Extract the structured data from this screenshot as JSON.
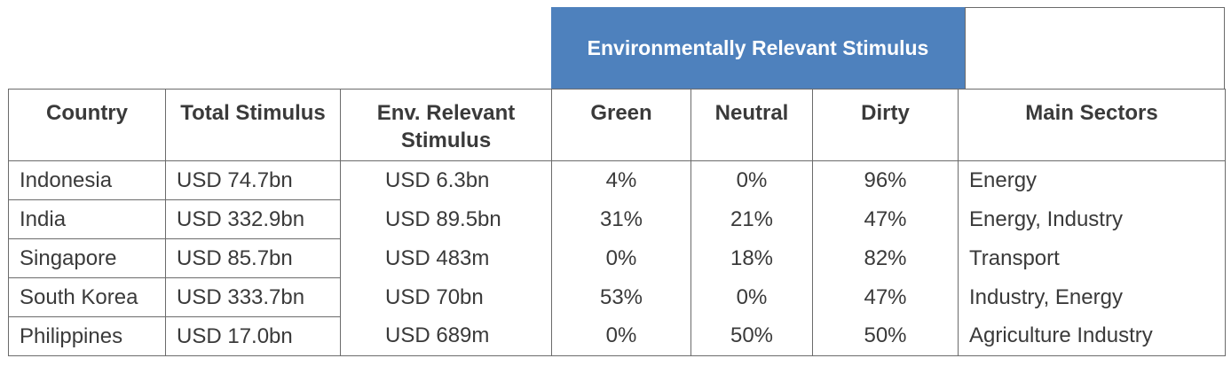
{
  "group_header": "Environmentally Relevant Stimulus",
  "columns": [
    "Country",
    "Total Stimulus",
    "Env. Relevant Stimulus",
    "Green",
    "Neutral",
    "Dirty",
    "Main Sectors"
  ],
  "rows": [
    {
      "country": "Indonesia",
      "total": "USD 74.7bn",
      "env": "USD 6.3bn",
      "green": "4%",
      "neutral": "0%",
      "dirty": "96%",
      "sectors": "Energy"
    },
    {
      "country": "India",
      "total": "USD 332.9bn",
      "env": "USD 89.5bn",
      "green": "31%",
      "neutral": "21%",
      "dirty": "47%",
      "sectors": "Energy, Industry"
    },
    {
      "country": "Singapore",
      "total": "USD 85.7bn",
      "env": "USD 483m",
      "green": "0%",
      "neutral": "18%",
      "dirty": "82%",
      "sectors": "Transport"
    },
    {
      "country": "South Korea",
      "total": "USD 333.7bn",
      "env": "USD 70bn",
      "green": "53%",
      "neutral": "0%",
      "dirty": "47%",
      "sectors": "Industry, Energy"
    },
    {
      "country": "Philippines",
      "total": "USD 17.0bn",
      "env": "USD 689m",
      "green": "0%",
      "neutral": "50%",
      "dirty": "50%",
      "sectors": "Agriculture Industry"
    }
  ],
  "colors": {
    "header_fill": "#4e81bd",
    "header_text": "#ffffff",
    "border": "#6b6b6b",
    "text": "#3a3a3a"
  }
}
